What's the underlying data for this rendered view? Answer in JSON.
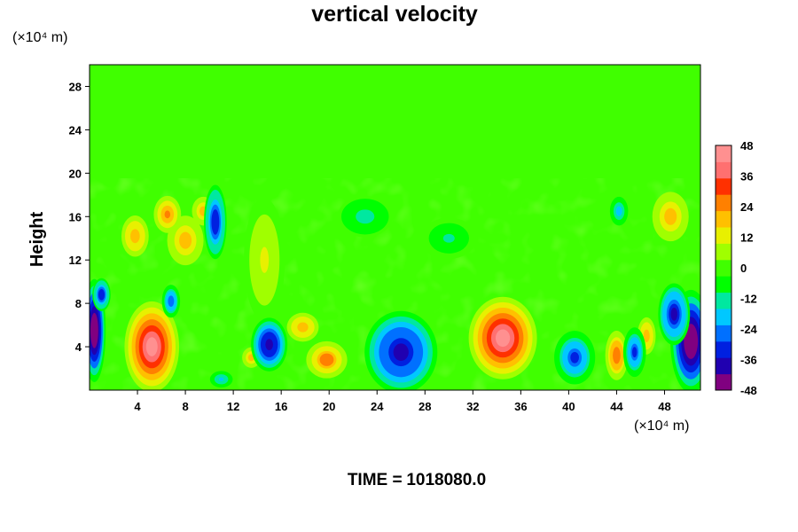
{
  "chart_data": {
    "type": "heatmap",
    "title": "vertical velocity",
    "ylabel": "Height",
    "x_unit": "(×10⁴ m)",
    "y_unit": "(×10⁴ m)",
    "footer": {
      "label": "TIME =",
      "value": "1018080.0"
    },
    "xlim": [
      0,
      51
    ],
    "ylim": [
      0,
      30
    ],
    "x_ticks": [
      4,
      8,
      12,
      16,
      20,
      24,
      28,
      32,
      36,
      40,
      44,
      48
    ],
    "y_ticks": [
      4,
      8,
      12,
      16,
      20,
      24,
      28
    ],
    "colorbar": {
      "range": [
        -48,
        48
      ],
      "ticks": [
        48,
        36,
        24,
        12,
        0,
        -12,
        -24,
        -36,
        -48
      ],
      "colors": [
        "#800080",
        "#2000b0",
        "#0020e0",
        "#0070ff",
        "#00c8ff",
        "#00e8a0",
        "#00ff00",
        "#40ff00",
        "#a0ff00",
        "#e8f000",
        "#ffc000",
        "#ff8000",
        "#ff3000",
        "#ff7070",
        "#ff9090"
      ]
    },
    "background_value": 0,
    "features": [
      {
        "x": 5.2,
        "y": 4.0,
        "sx": 1.2,
        "sy": 2.2,
        "value": 44
      },
      {
        "x": 34.5,
        "y": 4.8,
        "sx": 1.5,
        "sy": 2.0,
        "value": 44
      },
      {
        "x": 19.8,
        "y": 2.8,
        "sx": 0.9,
        "sy": 0.9,
        "value": 26
      },
      {
        "x": 17.8,
        "y": 5.8,
        "sx": 0.7,
        "sy": 0.7,
        "value": 22
      },
      {
        "x": 44.0,
        "y": 3.2,
        "sx": 0.5,
        "sy": 1.2,
        "value": 28
      },
      {
        "x": 46.5,
        "y": 5.0,
        "sx": 0.4,
        "sy": 0.9,
        "value": 22
      },
      {
        "x": 8.0,
        "y": 13.8,
        "sx": 0.8,
        "sy": 1.2,
        "value": 20
      },
      {
        "x": 3.8,
        "y": 14.2,
        "sx": 0.6,
        "sy": 1.0,
        "value": 22
      },
      {
        "x": 6.5,
        "y": 16.2,
        "sx": 0.6,
        "sy": 0.9,
        "value": 24
      },
      {
        "x": 13.5,
        "y": 3.0,
        "sx": 0.4,
        "sy": 0.5,
        "value": 20
      },
      {
        "x": 48.5,
        "y": 16.0,
        "sx": 0.8,
        "sy": 1.2,
        "value": 20
      },
      {
        "x": 9.5,
        "y": 16.5,
        "sx": 0.5,
        "sy": 0.7,
        "value": 20
      },
      {
        "x": 14.6,
        "y": 12.0,
        "sx": 0.9,
        "sy": 3.0,
        "value": 10
      },
      {
        "x": 0.4,
        "y": 5.5,
        "sx": 0.5,
        "sy": 2.5,
        "value": -50
      },
      {
        "x": 50.2,
        "y": 4.5,
        "sx": 0.9,
        "sy": 2.5,
        "value": -50
      },
      {
        "x": 48.8,
        "y": 7.0,
        "sx": 0.7,
        "sy": 1.5,
        "value": -36
      },
      {
        "x": 26.0,
        "y": 3.5,
        "sx": 1.6,
        "sy": 2.0,
        "value": -38
      },
      {
        "x": 15.0,
        "y": 4.2,
        "sx": 0.8,
        "sy": 1.3,
        "value": -40
      },
      {
        "x": 40.5,
        "y": 3.0,
        "sx": 0.9,
        "sy": 1.3,
        "value": -30
      },
      {
        "x": 45.5,
        "y": 3.5,
        "sx": 0.5,
        "sy": 1.2,
        "value": -30
      },
      {
        "x": 10.5,
        "y": 15.5,
        "sx": 0.5,
        "sy": 1.8,
        "value": -34
      },
      {
        "x": 1.0,
        "y": 8.8,
        "sx": 0.4,
        "sy": 0.8,
        "value": -34
      },
      {
        "x": 6.8,
        "y": 8.2,
        "sx": 0.4,
        "sy": 0.8,
        "value": -28
      },
      {
        "x": 44.2,
        "y": 16.5,
        "sx": 0.4,
        "sy": 0.7,
        "value": -20
      },
      {
        "x": 11.0,
        "y": 1.0,
        "sx": 0.5,
        "sy": 0.4,
        "value": -18
      },
      {
        "x": 23.0,
        "y": 16.0,
        "sx": 1.2,
        "sy": 1.0,
        "value": -12
      },
      {
        "x": 30.0,
        "y": 14.0,
        "sx": 1.2,
        "sy": 1.0,
        "value": -10
      }
    ]
  }
}
